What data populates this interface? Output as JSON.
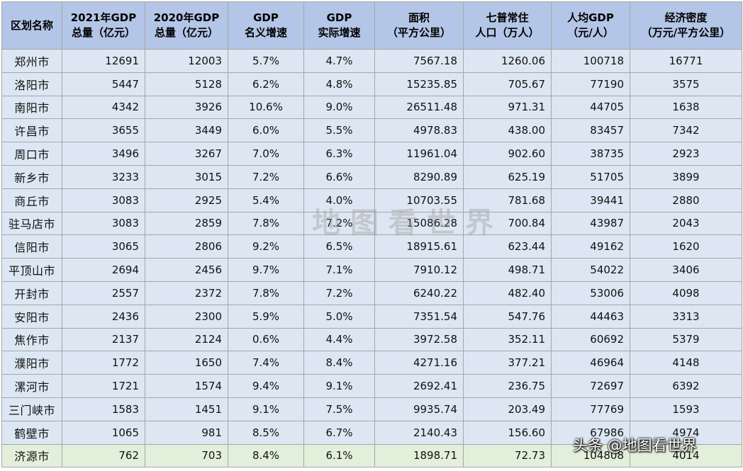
{
  "table": {
    "headers": [
      [
        "区划名称"
      ],
      [
        "2021年GDP",
        "总量（亿元）"
      ],
      [
        "2020年GDP",
        "总量（亿元）"
      ],
      [
        "GDP",
        "名义增速"
      ],
      [
        "GDP",
        "实际增速"
      ],
      [
        "面积",
        "（平方公里）"
      ],
      [
        "七普常住",
        "人口（万人）"
      ],
      [
        "人均GDP",
        "（元/人）"
      ],
      [
        "经济密度",
        "（万元/平方公里）"
      ]
    ],
    "rows": [
      [
        "郑州市",
        "12691",
        "12003",
        "5.7%",
        "4.7%",
        "7567.18",
        "1260.06",
        "100718",
        "16771"
      ],
      [
        "洛阳市",
        "5447",
        "5128",
        "6.2%",
        "4.8%",
        "15235.85",
        "705.67",
        "77190",
        "3575"
      ],
      [
        "南阳市",
        "4342",
        "3926",
        "10.6%",
        "9.0%",
        "26511.48",
        "971.31",
        "44705",
        "1638"
      ],
      [
        "许昌市",
        "3655",
        "3449",
        "6.0%",
        "5.5%",
        "4978.83",
        "438.00",
        "83457",
        "7342"
      ],
      [
        "周口市",
        "3496",
        "3267",
        "7.0%",
        "6.3%",
        "11961.04",
        "902.60",
        "38735",
        "2923"
      ],
      [
        "新乡市",
        "3233",
        "3015",
        "7.2%",
        "6.6%",
        "8290.89",
        "625.19",
        "51705",
        "3899"
      ],
      [
        "商丘市",
        "3083",
        "2925",
        "5.4%",
        "4.0%",
        "10703.55",
        "781.68",
        "39441",
        "2880"
      ],
      [
        "驻马店市",
        "3083",
        "2859",
        "7.8%",
        "7.2%",
        "15086.28",
        "700.84",
        "43987",
        "2043"
      ],
      [
        "信阳市",
        "3065",
        "2806",
        "9.2%",
        "6.5%",
        "18915.61",
        "623.44",
        "49162",
        "1620"
      ],
      [
        "平顶山市",
        "2694",
        "2456",
        "9.7%",
        "7.1%",
        "7910.12",
        "498.71",
        "54022",
        "3406"
      ],
      [
        "开封市",
        "2557",
        "2372",
        "7.8%",
        "7.2%",
        "6240.22",
        "482.40",
        "53006",
        "4098"
      ],
      [
        "安阳市",
        "2436",
        "2300",
        "5.9%",
        "5.0%",
        "7351.54",
        "547.76",
        "44463",
        "3313"
      ],
      [
        "焦作市",
        "2137",
        "2124",
        "0.6%",
        "4.4%",
        "3972.58",
        "352.11",
        "60692",
        "5379"
      ],
      [
        "濮阳市",
        "1772",
        "1650",
        "7.4%",
        "8.4%",
        "4271.16",
        "377.21",
        "46964",
        "4148"
      ],
      [
        "漯河市",
        "1721",
        "1574",
        "9.4%",
        "9.1%",
        "2692.41",
        "236.75",
        "72697",
        "6392"
      ],
      [
        "三门峡市",
        "1583",
        "1451",
        "9.1%",
        "7.5%",
        "9935.74",
        "203.49",
        "77769",
        "1593"
      ],
      [
        "鹤壁市",
        "1065",
        "981",
        "8.5%",
        "6.7%",
        "2140.43",
        "156.60",
        "67986",
        "4974"
      ],
      [
        "济源市",
        "762",
        "703",
        "8.4%",
        "6.1%",
        "1898.71",
        "72.73",
        "104808",
        "4014"
      ]
    ]
  },
  "watermark": "地图看世界",
  "credit": "头条 @地图看世界"
}
